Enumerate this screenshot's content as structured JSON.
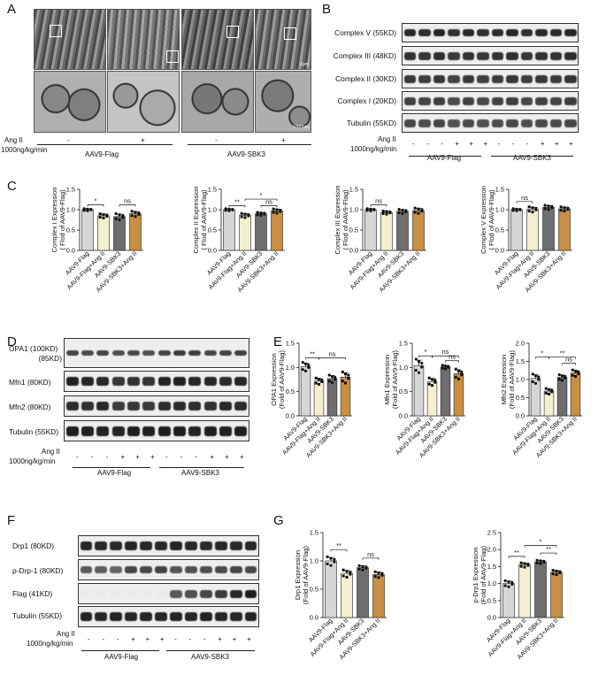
{
  "panels": {
    "a": "A",
    "b": "B",
    "c": "C",
    "d": "D",
    "e": "E",
    "f": "F",
    "g": "G"
  },
  "panelA": {
    "angii_label": "Ang II",
    "dose_label": "1000ng/kg/min",
    "signs": [
      "-",
      "+",
      "-",
      "+"
    ],
    "groups": [
      "AAV9-Flag",
      "AAV9-SBK3"
    ],
    "scale_top": "2μm",
    "scale_bottom": "1000nm"
  },
  "panelB": {
    "bands": [
      "Complex V (55KD)",
      "Complex III (48KD)",
      "Complex II (30KD)",
      "Complex I (20KD)",
      "Tubulin (55KD)"
    ],
    "angii_label": "Ang II",
    "dose_label": "1000ng/kg/min",
    "signs": [
      "-",
      "-",
      "-",
      "+",
      "+",
      "+",
      "-",
      "-",
      "-",
      "+",
      "+",
      "+"
    ],
    "groups": [
      "AAV9-Flag",
      "AAV9-SBK3"
    ]
  },
  "panelD": {
    "bands": [
      "OPA1 (100KD)",
      "(85KD)",
      "Mfn1 (80KD)",
      "Mfn2 (80KD)",
      "Tubulin (55KD)"
    ],
    "angii_label": "Ang II",
    "dose_label": "1000ng/kg/min",
    "signs": [
      "-",
      "-",
      "-",
      "+",
      "+",
      "+",
      "-",
      "-",
      "-",
      "+",
      "+",
      "+"
    ],
    "groups": [
      "AAV9-Flag",
      "AAV9-SBK3"
    ]
  },
  "panelF": {
    "bands": [
      "Drp1  (80KD)",
      "p-Drp-1  (80KD)",
      "Flag  (41KD)",
      "Tubulin  (55KD)"
    ],
    "angii_label": "Ang II",
    "dose_label": "1000ng/kg/min",
    "signs": [
      "-",
      "-",
      "-",
      "+",
      "+",
      "+",
      "-",
      "-",
      "-",
      "+",
      "+",
      "+"
    ],
    "groups": [
      "AAV9-Flag",
      "AAV9-SBK3"
    ]
  },
  "colors": {
    "flag": "#d6d6d6",
    "flag_ang": "#f4efcf",
    "sbk3": "#6e6e6e",
    "sbk3_ang": "#c98f42"
  },
  "chart_data": [
    {
      "type": "bar",
      "panel": "C",
      "ylabel_lines": [
        "Complex I Expression",
        "( Flod of AAV9-Flag)"
      ],
      "categories": [
        "AAV9-Flag",
        "AAV9-Flag+Ang II",
        "AAV9-SBK3",
        "AAV9-SBK3+Ang II"
      ],
      "values": [
        1.0,
        0.85,
        0.83,
        0.9
      ],
      "errors": [
        0.02,
        0.04,
        0.06,
        0.05
      ],
      "ylim": [
        0,
        1.5
      ],
      "yticks": [
        "0.0",
        "0.5",
        "1.0",
        "1.5"
      ],
      "sig": [
        {
          "from": 0,
          "to": 1,
          "label": "*",
          "y": 1.12
        },
        {
          "from": 2,
          "to": 3,
          "label": "ns",
          "y": 1.12
        }
      ]
    },
    {
      "type": "bar",
      "panel": "C",
      "ylabel_lines": [
        "Complex II Expression",
        "( Flod of AAV9-Flag)"
      ],
      "categories": [
        "AAV9-Flag",
        "AAV9-Flag+Ang II",
        "AAV9-SBK3",
        "AAV9-SBK3+Ang II"
      ],
      "values": [
        1.0,
        0.86,
        0.9,
        0.97
      ],
      "errors": [
        0.02,
        0.04,
        0.03,
        0.04
      ],
      "ylim": [
        0,
        1.5
      ],
      "yticks": [
        "0.0",
        "0.5",
        "1.0",
        "1.5"
      ],
      "sig": [
        {
          "from": 0,
          "to": 1,
          "label": "**",
          "y": 1.1
        },
        {
          "from": 2,
          "to": 3,
          "label": "ns",
          "y": 1.1
        },
        {
          "from": 1,
          "to": 3,
          "label": "*",
          "y": 1.26
        }
      ]
    },
    {
      "type": "bar",
      "panel": "C",
      "ylabel_lines": [
        "Complex III Expression",
        "( Flod of AAV9-Flag)"
      ],
      "categories": [
        "AAV9-Flag",
        "AAV9-Flag+Ang II",
        "AAV9-SBK3",
        "AAV9-SBK3+Ang II"
      ],
      "values": [
        1.0,
        0.93,
        0.96,
        0.98
      ],
      "errors": [
        0.02,
        0.03,
        0.04,
        0.05
      ],
      "ylim": [
        0,
        1.5
      ],
      "yticks": [
        "0.0",
        "0.5",
        "1.0",
        "1.5"
      ],
      "sig": [
        {
          "from": 0,
          "to": 1,
          "label": "ns",
          "y": 1.12
        }
      ]
    },
    {
      "type": "bar",
      "panel": "C",
      "ylabel_lines": [
        "Complex V Expression",
        "( Flod of AAV9-Flag)"
      ],
      "categories": [
        "AAV9-Flag",
        "AAV9-Flag+Ang II",
        "AAV9-SBK3",
        "AAV9-SBK3+Ang II"
      ],
      "values": [
        1.0,
        1.01,
        1.06,
        1.02
      ],
      "errors": [
        0.02,
        0.05,
        0.04,
        0.04
      ],
      "ylim": [
        0,
        1.5
      ],
      "yticks": [
        "0.0",
        "0.5",
        "1.0",
        "1.5"
      ],
      "sig": [
        {
          "from": 0,
          "to": 1,
          "label": "ns",
          "y": 1.2
        }
      ]
    },
    {
      "type": "bar",
      "panel": "E",
      "ylabel_lines": [
        "OPA1 Expression",
        "(Fold of AAV9-Flag)"
      ],
      "categories": [
        "AAV9-Flag",
        "AAV9-Flag+Ang II",
        "AAV9-SBK3",
        "AAV9-SBK3+Ang II"
      ],
      "values": [
        1.02,
        0.72,
        0.77,
        0.8
      ],
      "errors": [
        0.07,
        0.05,
        0.06,
        0.09
      ],
      "ylim": [
        0,
        1.5
      ],
      "yticks": [
        "0.0",
        "0.5",
        "1.0",
        "1.5"
      ],
      "sig": [
        {
          "from": 0,
          "to": 1,
          "label": "**",
          "y": 1.2
        },
        {
          "from": 1,
          "to": 3,
          "label": "ns",
          "y": 1.2
        }
      ]
    },
    {
      "type": "bar",
      "panel": "E",
      "ylabel_lines": [
        "Mfn1 Expression",
        "(Fold of AAV9-Flag)"
      ],
      "categories": [
        "AAV9-Flag",
        "AAV9-Flag+Ang II",
        "AAV9-SBK3",
        "AAV9-SBK3+Ang II"
      ],
      "values": [
        1.04,
        0.71,
        1.01,
        0.87
      ],
      "errors": [
        0.11,
        0.06,
        0.03,
        0.08
      ],
      "ylim": [
        0,
        1.5
      ],
      "yticks": [
        "0.0",
        "0.5",
        "1.0",
        "1.5"
      ],
      "sig": [
        {
          "from": 0,
          "to": 1,
          "label": "*",
          "y": 1.24
        },
        {
          "from": 1,
          "to": 3,
          "label": "ns",
          "y": 1.24
        },
        {
          "from": 2,
          "to": 3,
          "label": "ns",
          "y": 1.14
        }
      ]
    },
    {
      "type": "bar",
      "panel": "E",
      "ylabel_lines": [
        "Mfn2 Expression",
        "(Fold of AAV9-Flag)"
      ],
      "categories": [
        "AAV9-Flag",
        "AAV9-Flag+Ang II",
        "AAV9-SBK3",
        "AAV9-SBK3+Ang II"
      ],
      "values": [
        1.03,
        0.68,
        1.06,
        1.18
      ],
      "errors": [
        0.1,
        0.06,
        0.06,
        0.07
      ],
      "ylim": [
        0,
        2.0
      ],
      "yticks": [
        "0.0",
        "0.5",
        "1.0",
        "1.5",
        "2.0"
      ],
      "sig": [
        {
          "from": 0,
          "to": 1,
          "label": "*",
          "y": 1.62
        },
        {
          "from": 1,
          "to": 3,
          "label": "**",
          "y": 1.62
        },
        {
          "from": 2,
          "to": 3,
          "label": "ns",
          "y": 1.45
        }
      ]
    },
    {
      "type": "bar",
      "panel": "G",
      "ylabel_lines": [
        "Drp1 Expression",
        "(Fold of AAV9-Flag)"
      ],
      "categories": [
        "AAV9-Flag",
        "AAV9-Flag+Ang II",
        "AAV9-SBK3",
        "AAV9-SBK3+Ang II"
      ],
      "values": [
        1.0,
        0.78,
        0.88,
        0.76
      ],
      "errors": [
        0.06,
        0.05,
        0.03,
        0.04
      ],
      "ylim": [
        0,
        1.5
      ],
      "yticks": [
        "0.0",
        "0.5",
        "1.0",
        "1.5"
      ],
      "sig": [
        {
          "from": 0,
          "to": 1,
          "label": "**",
          "y": 1.2
        },
        {
          "from": 2,
          "to": 3,
          "label": "ns",
          "y": 1.05
        }
      ]
    },
    {
      "type": "bar",
      "panel": "G",
      "ylabel_lines": [
        "p-Drp1 Expression",
        "(Fold of AAV9-Flag)"
      ],
      "categories": [
        "AAV9-Flag",
        "AAV9-Flag+Ang II",
        "AAV9-SBK3",
        "AAV9-SBK3+Ang II"
      ],
      "values": [
        1.0,
        1.55,
        1.64,
        1.33
      ],
      "errors": [
        0.07,
        0.05,
        0.04,
        0.05
      ],
      "ylim": [
        0,
        2.5
      ],
      "yticks": [
        "0.0",
        "0.5",
        "1.0",
        "1.5",
        "2.0",
        "2.5"
      ],
      "sig": [
        {
          "from": 0,
          "to": 1,
          "label": "**",
          "y": 1.8
        },
        {
          "from": 2,
          "to": 3,
          "label": "**",
          "y": 1.9
        },
        {
          "from": 1,
          "to": 3,
          "label": "*",
          "y": 2.12
        }
      ]
    }
  ]
}
